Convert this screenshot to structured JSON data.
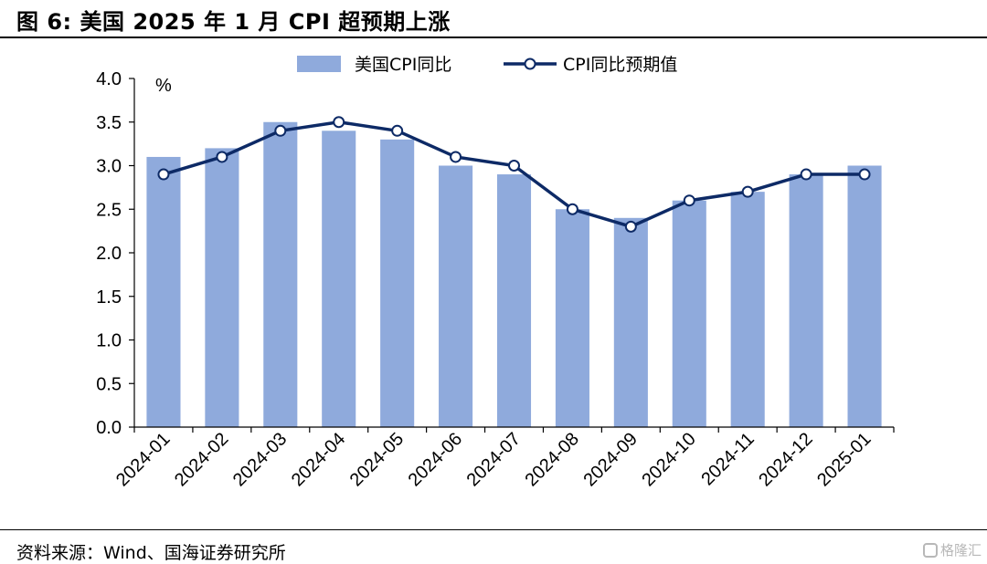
{
  "title": "图 6:  美国 2025 年 1 月 CPI 超预期上涨",
  "source": "资料来源：Wind、国海证券研究所",
  "watermark": "格隆汇",
  "colors": {
    "bar": "#8faadc",
    "line": "#0d2a66",
    "marker_fill": "#ffffff",
    "axis": "#000000"
  },
  "chart_data": {
    "type": "bar",
    "title": "美国 2025 年 1 月 CPI 超预期上涨",
    "ylabel": "%",
    "xlabel": "",
    "ylim": [
      0,
      4.0
    ],
    "yticks": [
      "0.0",
      "0.5",
      "1.0",
      "1.5",
      "2.0",
      "2.5",
      "3.0",
      "3.5",
      "4.0"
    ],
    "categories": [
      "2024-01",
      "2024-02",
      "2024-03",
      "2024-04",
      "2024-05",
      "2024-06",
      "2024-07",
      "2024-08",
      "2024-09",
      "2024-10",
      "2024-11",
      "2024-12",
      "2025-01"
    ],
    "series": [
      {
        "name": "美国CPI同比",
        "kind": "bar",
        "values": [
          3.1,
          3.2,
          3.5,
          3.4,
          3.3,
          3.0,
          2.9,
          2.5,
          2.4,
          2.6,
          2.7,
          2.9,
          3.0
        ]
      },
      {
        "name": "CPI同比预期值",
        "kind": "line",
        "values": [
          2.9,
          3.1,
          3.4,
          3.5,
          3.4,
          3.1,
          3.0,
          2.5,
          2.3,
          2.6,
          2.7,
          2.9,
          2.9
        ]
      }
    ],
    "legend_position": "top-center",
    "grid": false
  }
}
